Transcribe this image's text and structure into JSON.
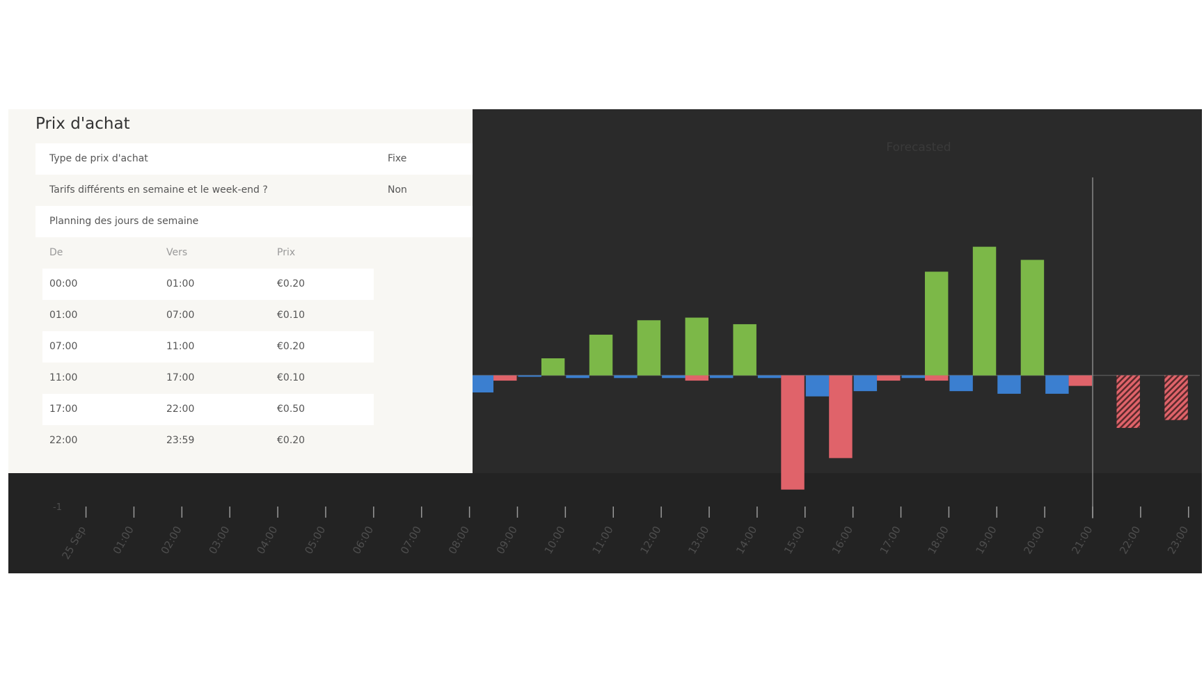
{
  "panel": {
    "title": "Prix d'achat",
    "rows": [
      {
        "label": "Type de prix d'achat",
        "value": "Fixe"
      },
      {
        "label": "Tarifs différents en semaine et le week-end ?",
        "value": "Non"
      },
      {
        "label": "Planning des jours de semaine",
        "value": ""
      }
    ],
    "table": {
      "headers": [
        "De",
        "Vers",
        "Prix"
      ],
      "rows": [
        [
          "00:00",
          "01:00",
          "€0.20"
        ],
        [
          "01:00",
          "07:00",
          "€0.10"
        ],
        [
          "07:00",
          "11:00",
          "€0.20"
        ],
        [
          "11:00",
          "17:00",
          "€0.10"
        ],
        [
          "17:00",
          "22:00",
          "€0.50"
        ],
        [
          "22:00",
          "23:59",
          "€0.20"
        ]
      ]
    }
  },
  "chart_data": {
    "type": "bar",
    "annotation": "Forecasted",
    "y_tick_label": "-1",
    "x_tick_labels": [
      "25 Sep",
      "01:00",
      "02:00",
      "03:00",
      "04:00",
      "05:00",
      "06:00",
      "07:00",
      "08:00",
      "09:00",
      "10:00",
      "11:00",
      "12:00",
      "13:00",
      "14:00",
      "15:00",
      "16:00",
      "17:00",
      "18:00",
      "19:00",
      "20:00",
      "21:00",
      "22:00",
      "23:00"
    ],
    "forecast_start": "21:00",
    "ylim": [
      -1,
      1.3
    ],
    "colors": {
      "blue": "#3b7fd0",
      "green": "#7cb848",
      "red": "#e0636a",
      "background": "#2a2a2a"
    },
    "series": [
      {
        "color": "blue",
        "hours": [
          "08:00",
          "09:00",
          "10:00",
          "11:00",
          "12:00",
          "13:00",
          "14:00",
          "15:00",
          "16:00",
          "17:00",
          "18:00",
          "19:00",
          "20:00"
        ],
        "values": [
          -0.13,
          -0.01,
          -0.02,
          -0.02,
          -0.02,
          -0.02,
          -0.02,
          -0.16,
          -0.12,
          -0.02,
          -0.12,
          -0.14,
          -0.14
        ]
      },
      {
        "color": "green",
        "hours": [
          "09:00",
          "10:00",
          "11:00",
          "12:00",
          "13:00",
          "17:00",
          "18:00",
          "19:00"
        ],
        "values": [
          0.13,
          0.31,
          0.42,
          0.44,
          0.39,
          0.79,
          0.98,
          0.88
        ]
      },
      {
        "color": "red",
        "hours": [
          "08:00",
          "12:00",
          "14:00",
          "15:00",
          "16:00",
          "17:00",
          "20:00"
        ],
        "values": [
          -0.04,
          -0.04,
          -0.87,
          -0.63,
          -0.04,
          -0.04,
          -0.08
        ]
      },
      {
        "color": "red",
        "forecast": true,
        "hours": [
          "21:00",
          "22:00"
        ],
        "values": [
          -0.4,
          -0.34
        ]
      }
    ]
  }
}
